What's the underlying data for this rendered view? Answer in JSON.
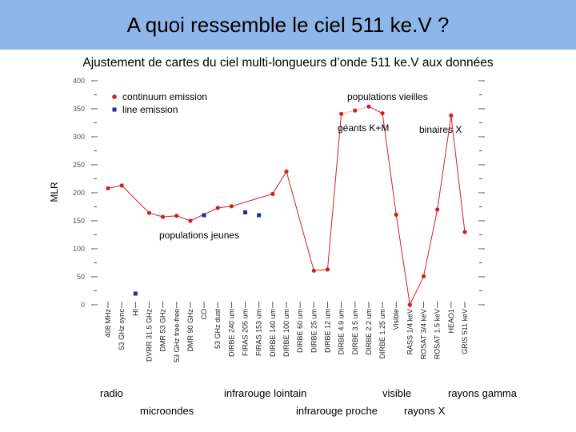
{
  "slide": {
    "title": "A quoi ressemble le ciel 511 ke.V ?",
    "subtitle": "Ajustement de cartes du ciel multi-longueurs d’onde 511 ke.V aux données"
  },
  "colors": {
    "title_bar": "#8fb6e8",
    "continuum": "#d21f1f",
    "line": "#1a2f9c",
    "axis": "#555555"
  },
  "chart_data": {
    "type": "scatter",
    "ylabel": "MLR",
    "ylim": [
      0,
      400
    ],
    "yticks": [
      0,
      50,
      100,
      150,
      200,
      250,
      300,
      350,
      400
    ],
    "categories": [
      "408 MHz",
      "53 GHz sync",
      "HI",
      "DVRR 31.5 GHz",
      "DMR 53 GHz",
      "53 GHz free-free",
      "DMR 90 GHz",
      "CO",
      "53 GHz dust",
      "DIRBE 240 um",
      "FIRAS 205 um",
      "FIRAS 153 um",
      "DIRBE 140 um",
      "DIRBE 100 um",
      "DIRBE 60 um",
      "DIRBE 25 um",
      "DIRBE 12 um",
      "DIRBE 4.9 um",
      "DIRBE 3.5 um",
      "DIRBE 2.2 um",
      "DIRBE 1.25 um",
      "Visible",
      "RASS 1/4 keV",
      "ROSAT 3/4 keV",
      "ROSAT 1.5 keV",
      "HEAO1",
      "GRIS 511 keV"
    ],
    "series": [
      {
        "name": "continuum emission",
        "points": [
          [
            0,
            208
          ],
          [
            1,
            213
          ],
          [
            3,
            164
          ],
          [
            4,
            157
          ],
          [
            5,
            159
          ],
          [
            6,
            150
          ],
          [
            8,
            173
          ],
          [
            9,
            176
          ],
          [
            12,
            198
          ],
          [
            13,
            238
          ],
          [
            15,
            61
          ],
          [
            16,
            63
          ],
          [
            17,
            341
          ],
          [
            18,
            347
          ],
          [
            19,
            354
          ],
          [
            20,
            342
          ],
          [
            21,
            161
          ],
          [
            22,
            0
          ],
          [
            23,
            51
          ],
          [
            24,
            170
          ],
          [
            25,
            338
          ],
          [
            26,
            130
          ]
        ]
      },
      {
        "name": "line emission",
        "points": [
          [
            2,
            20
          ],
          [
            7,
            160
          ],
          [
            10,
            165
          ],
          [
            11,
            160
          ]
        ]
      }
    ],
    "annotations": [
      "populations vieilles",
      "géants K+M",
      "binaires X",
      "populations jeunes"
    ]
  },
  "regions": {
    "radio": "radio",
    "microwave": "microondes",
    "far_ir": "infrarouge lointain",
    "near_ir": "infrarouge proche",
    "visible": "visible",
    "xray": "rayons X",
    "gamma": "rayons gamma"
  }
}
